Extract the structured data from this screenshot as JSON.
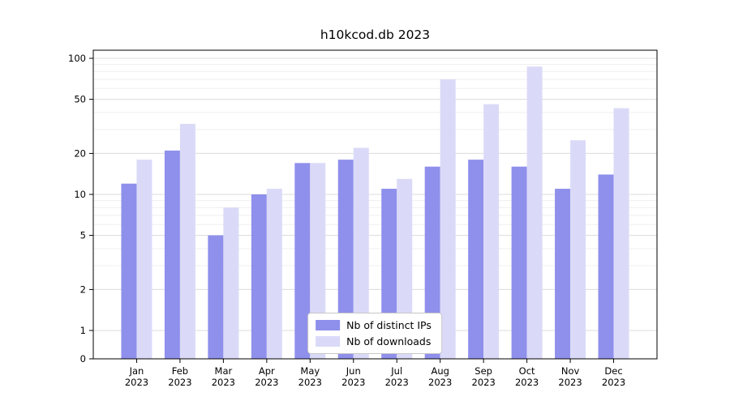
{
  "chart_data": {
    "type": "bar",
    "title": "h10kcod.db 2023",
    "categories": [
      "Jan",
      "Feb",
      "Mar",
      "Apr",
      "May",
      "Jun",
      "Jul",
      "Aug",
      "Sep",
      "Oct",
      "Nov",
      "Dec"
    ],
    "year": "2023",
    "series": [
      {
        "name": "Nb of distinct IPs",
        "color": "#8f8fec",
        "values": [
          12,
          21,
          5,
          10,
          17,
          18,
          11,
          16,
          18,
          16,
          11,
          14
        ]
      },
      {
        "name": "Nb of downloads",
        "color": "#dadaf8",
        "values": [
          18,
          33,
          8,
          11,
          17,
          22,
          13,
          70,
          46,
          87,
          25,
          43
        ]
      }
    ],
    "yscale": "symlog",
    "yticks": [
      0,
      1,
      2,
      5,
      10,
      20,
      50,
      100
    ],
    "ylim": [
      0,
      110
    ],
    "xlabel": "",
    "ylabel": "",
    "grid": true,
    "legend_position": "lower center"
  }
}
